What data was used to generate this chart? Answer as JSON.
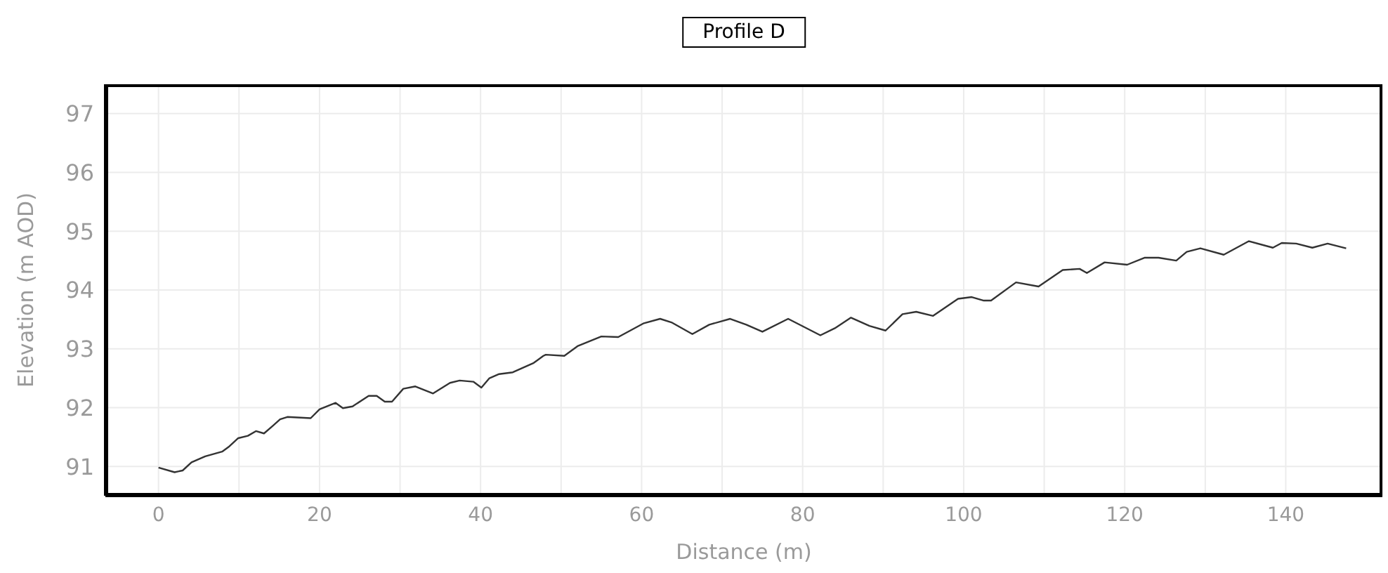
{
  "chart_data": {
    "type": "line",
    "title": "Profile D",
    "xlabel": "Distance (m)",
    "ylabel": "Elevation (m AOD)",
    "xlim": [
      -6.6,
      152
    ],
    "ylim": [
      90.5,
      97.5
    ],
    "xticks": [
      0,
      {
        "value": 10,
        "label": null
      },
      20,
      {
        "value": 30,
        "label": null
      },
      40,
      {
        "value": 50,
        "label": null
      },
      60,
      {
        "value": 70,
        "label": null
      },
      80,
      {
        "value": 90,
        "label": null
      },
      100,
      {
        "value": 110,
        "label": null
      },
      120,
      {
        "value": 130,
        "label": null
      },
      140
    ],
    "yticks": [
      91,
      92,
      93,
      94,
      95,
      96,
      97
    ],
    "grid": true,
    "marker": "none",
    "line_style": "solid",
    "series": [
      {
        "color": "#333333",
        "x": [
          0,
          2,
          3,
          4.1,
          5.8,
          7.9,
          8.7,
          9.9,
          11.1,
          12.1,
          13.1,
          14.2,
          15.1,
          16,
          18.9,
          20,
          22,
          22.9,
          24.1,
          26.1,
          27.1,
          28.1,
          29,
          30.4,
          31.9,
          34.1,
          36.2,
          37.4,
          39.1,
          40.1,
          41.1,
          42.3,
          44,
          46.6,
          47.8,
          48.1,
          50.4,
          52.1,
          55,
          57.1,
          60.2,
          62.3,
          63.7,
          66.3,
          68.4,
          71,
          73,
          75,
          78.2,
          80.2,
          82.2,
          84,
          86,
          88.3,
          90.3,
          92.4,
          94.1,
          96.2,
          99.3,
          101,
          102.5,
          103.4,
          106.5,
          109.3,
          112.3,
          114.4,
          115.3,
          117.5,
          120.3,
          122.5,
          124.2,
          126.4,
          127.7,
          129.4,
          132.3,
          135.4,
          138.4,
          139.5,
          141.3,
          143.3,
          145.2,
          147.5
        ],
        "values": [
          90.98,
          90.9,
          90.93,
          91.07,
          91.17,
          91.25,
          91.33,
          91.48,
          91.52,
          91.6,
          91.56,
          91.69,
          91.8,
          91.84,
          91.82,
          91.97,
          92.08,
          91.99,
          92.02,
          92.2,
          92.2,
          92.1,
          92.1,
          92.32,
          92.36,
          92.24,
          92.42,
          92.46,
          92.44,
          92.34,
          92.5,
          92.57,
          92.6,
          92.76,
          92.88,
          92.9,
          92.88,
          93.05,
          93.21,
          93.2,
          93.43,
          93.51,
          93.45,
          93.25,
          93.41,
          93.51,
          93.41,
          93.29,
          93.51,
          93.37,
          93.23,
          93.35,
          93.53,
          93.39,
          93.31,
          93.59,
          93.63,
          93.56,
          93.85,
          93.88,
          93.82,
          93.82,
          94.13,
          94.06,
          94.34,
          94.36,
          94.29,
          94.47,
          94.43,
          94.55,
          94.55,
          94.5,
          94.65,
          94.71,
          94.6,
          94.83,
          94.72,
          94.8,
          94.79,
          94.72,
          94.79,
          94.71
        ]
      }
    ]
  }
}
